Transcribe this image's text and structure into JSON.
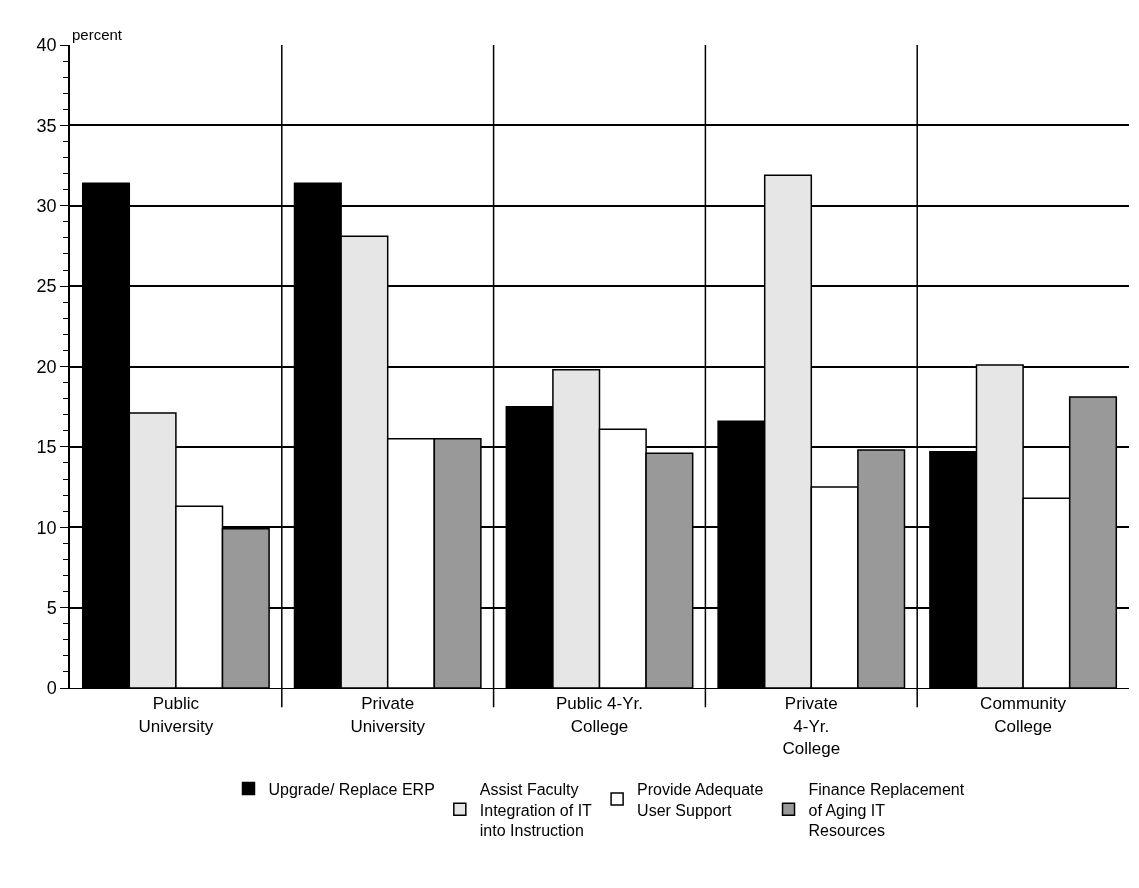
{
  "chart_data": {
    "type": "bar",
    "ylabel": "percent",
    "categories": [
      "Public University",
      "Private University",
      "Public 4-Yr. College",
      "Private 4-Yr. College",
      "Community College"
    ],
    "series": [
      {
        "name": "Upgrade/ Replace ERP",
        "color": "#000000",
        "values": [
          31.4,
          31.4,
          17.5,
          16.6,
          14.7
        ]
      },
      {
        "name": "Assist Faculty Integration of IT into Instruction",
        "color": "#e6e6e6",
        "values": [
          17.1,
          28.1,
          19.8,
          31.9,
          20.1
        ]
      },
      {
        "name": "Provide Adequate User Support",
        "color": "#ffffff",
        "values": [
          11.3,
          15.5,
          16.1,
          12.5,
          11.8
        ]
      },
      {
        "name": "Finance Replacement of Aging IT Resources",
        "color": "#999999",
        "values": [
          9.9,
          15.5,
          14.6,
          14.8,
          18.1
        ]
      }
    ],
    "ylim": [
      0,
      40
    ],
    "yticks": [
      0,
      5,
      10,
      15,
      20,
      25,
      30,
      35,
      40
    ],
    "grid": true,
    "legend": "bottom"
  }
}
